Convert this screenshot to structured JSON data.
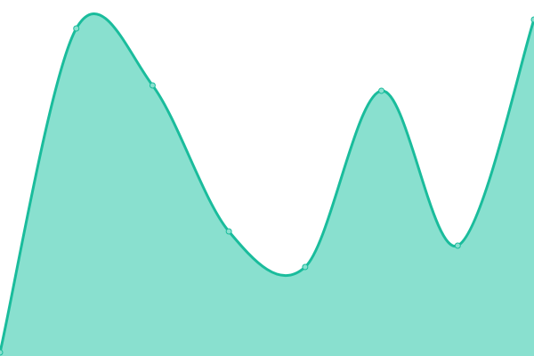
{
  "chart_data": {
    "type": "area",
    "title": "",
    "xlabel": "",
    "ylabel": "",
    "x": [
      0,
      1,
      2,
      3,
      4,
      5,
      6,
      7
    ],
    "values": [
      1,
      92,
      76,
      35,
      25,
      74.5,
      31,
      94.5
    ],
    "ylim": [
      0,
      100
    ],
    "grid": false,
    "legend": "none",
    "smooth": true,
    "markers": true,
    "colors": {
      "line": "#1abc9c",
      "fill": "#89e0cf",
      "marker": "#89e0cf"
    }
  }
}
